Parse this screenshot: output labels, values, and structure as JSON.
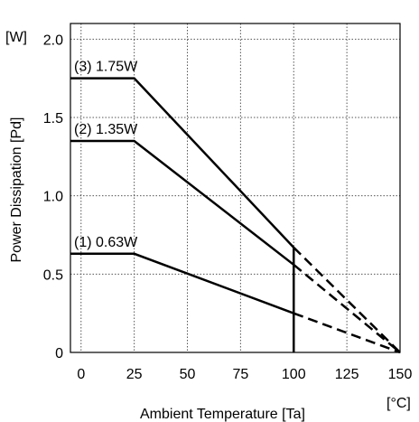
{
  "chart_data": {
    "type": "line",
    "title": "",
    "xlabel": "Ambient Temperature [Ta]",
    "ylabel": "Power Dissipation [Pd]",
    "x_unit": "[°C]",
    "y_unit": "[W]",
    "xlim": [
      -5,
      150
    ],
    "ylim": [
      0,
      2.1
    ],
    "x_ticks": [
      0,
      25,
      50,
      75,
      100,
      125,
      150
    ],
    "x_tick_labels": [
      "0",
      "25",
      "50",
      "75",
      "100",
      "125",
      "150"
    ],
    "y_ticks": [
      0,
      0.5,
      1.0,
      1.5,
      2.0
    ],
    "y_tick_labels": [
      "0",
      "0.5",
      "1.0",
      "1.5",
      "2.0"
    ],
    "grid": true,
    "vertical_marker_x": 100,
    "series": [
      {
        "name": "(1) 0.63W",
        "x": [
          -5,
          25,
          100,
          150
        ],
        "y": [
          0.63,
          0.63,
          0.25,
          0
        ],
        "dashed_from_x": 100
      },
      {
        "name": "(2) 1.35W",
        "x": [
          -5,
          25,
          100,
          150
        ],
        "y": [
          1.35,
          1.35,
          0.56,
          0
        ],
        "dashed_from_x": 100
      },
      {
        "name": "(3) 1.75W",
        "x": [
          -5,
          25,
          100,
          150
        ],
        "y": [
          1.75,
          1.75,
          0.67,
          0
        ],
        "dashed_from_x": 100
      }
    ]
  }
}
